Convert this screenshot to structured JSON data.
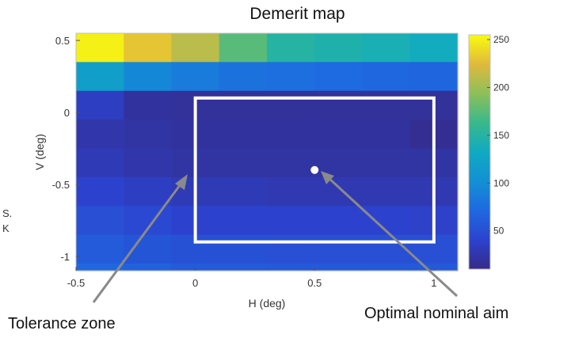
{
  "chart_data": {
    "type": "heatmap",
    "title": "Demerit map",
    "xlabel": "H (deg)",
    "ylabel": "V (deg)",
    "xlim": [
      -0.5,
      1.1
    ],
    "ylim": [
      -1.1,
      0.55
    ],
    "xticks": [
      -0.5,
      0,
      0.5,
      1
    ],
    "xtick_labels": [
      "-0.5",
      "0",
      "0.5",
      "1"
    ],
    "yticks": [
      0.5,
      0,
      -0.5,
      -1
    ],
    "ytick_labels": [
      "0.5",
      "0",
      "-0.5",
      "-1"
    ],
    "colorbar": {
      "ticks": [
        50,
        100,
        150,
        200,
        250
      ],
      "tick_labels": [
        "50",
        "100",
        "150",
        "200",
        "250"
      ],
      "range": [
        10,
        255
      ]
    },
    "x_edges": [
      -0.5,
      -0.3,
      -0.1,
      0.1,
      0.3,
      0.5,
      0.7,
      0.9,
      1.1
    ],
    "y_edges": [
      0.55,
      0.35,
      0.15,
      -0.05,
      -0.25,
      -0.45,
      -0.65,
      -0.85,
      -1.05,
      -1.15
    ],
    "values": [
      [
        250,
        230,
        210,
        175,
        150,
        145,
        140,
        135
      ],
      [
        120,
        95,
        85,
        78,
        75,
        72,
        70,
        68
      ],
      [
        35,
        20,
        18,
        18,
        18,
        18,
        18,
        18
      ],
      [
        25,
        22,
        20,
        20,
        20,
        20,
        20,
        15
      ],
      [
        30,
        25,
        22,
        22,
        22,
        22,
        22,
        22
      ],
      [
        40,
        35,
        30,
        30,
        28,
        28,
        28,
        28
      ],
      [
        50,
        45,
        40,
        40,
        40,
        40,
        40,
        38
      ],
      [
        60,
        55,
        52,
        52,
        50,
        50,
        50,
        50
      ],
      [
        70,
        65,
        60,
        60,
        58,
        58,
        58,
        58
      ]
    ],
    "tolerance_zone": {
      "h": [
        0,
        1
      ],
      "v": [
        -0.9,
        0.1
      ]
    },
    "optimal_point": {
      "h": 0.5,
      "v": -0.4
    }
  },
  "annotations": {
    "tolerance_zone": "Tolerance zone",
    "optimal_aim": "Optimal nominal aim"
  },
  "cropped_text": [
    "S.",
    "K"
  ]
}
